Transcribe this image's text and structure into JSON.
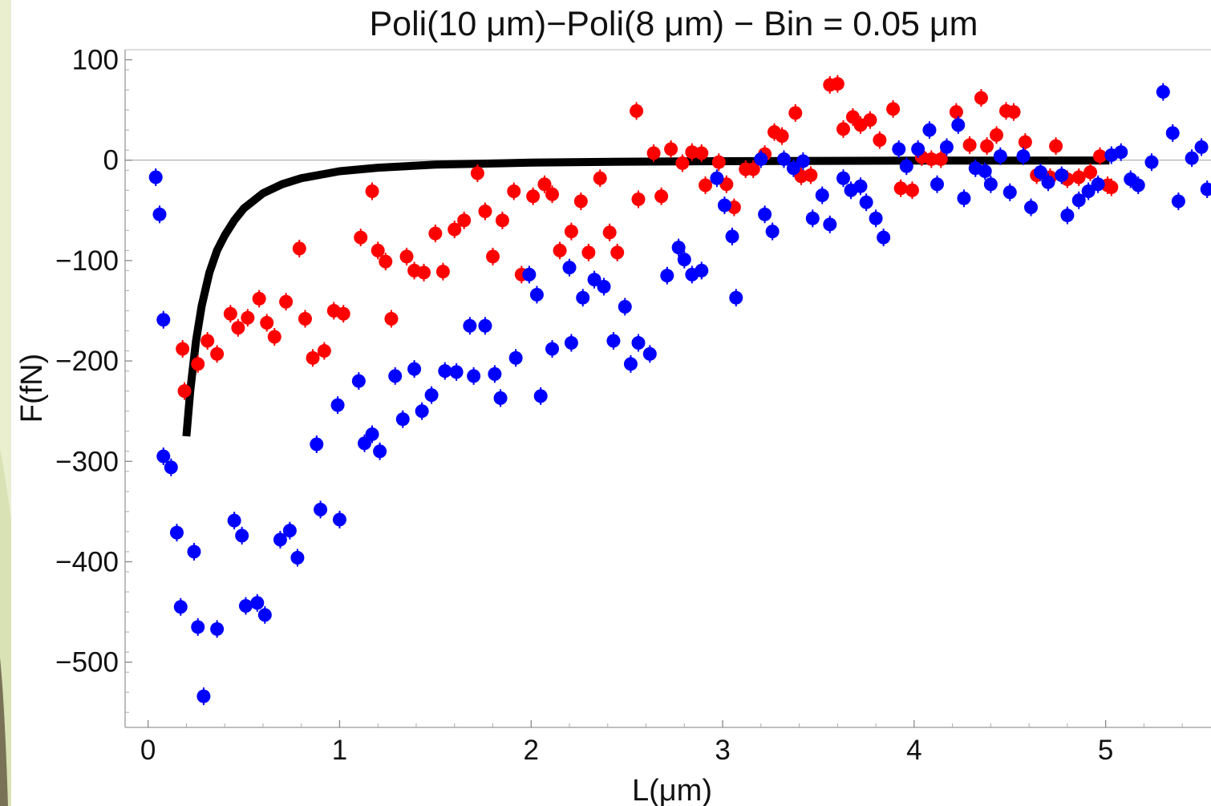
{
  "chart_data": {
    "type": "scatter",
    "title": "Poli(10 μm)−Poli(8 μm) − Bin = 0.05 μm",
    "xlabel": "L(μm)",
    "ylabel": "F(fN)",
    "xlim": [
      -0.12,
      5.55
    ],
    "ylim": [
      -565,
      110
    ],
    "xticks": [
      0,
      1,
      2,
      3,
      4,
      5
    ],
    "yticks": [
      100,
      0,
      -100,
      -200,
      -300,
      -400,
      -500
    ],
    "zero_line": true,
    "grid": false,
    "colors": {
      "red_series": "#ff0000",
      "blue_series": "#0000ff",
      "fit_curve": "#000000"
    },
    "series": [
      {
        "color": "#ff0000",
        "points": [
          [
            0.18,
            -188
          ],
          [
            0.19,
            -230
          ],
          [
            0.26,
            -203
          ],
          [
            0.31,
            -180
          ],
          [
            0.36,
            -193
          ],
          [
            0.43,
            -153
          ],
          [
            0.47,
            -167
          ],
          [
            0.52,
            -157
          ],
          [
            0.58,
            -138
          ],
          [
            0.62,
            -162
          ],
          [
            0.66,
            -176
          ],
          [
            0.72,
            -141
          ],
          [
            0.79,
            -88
          ],
          [
            0.82,
            -158
          ],
          [
            0.86,
            -197
          ],
          [
            0.92,
            -190
          ],
          [
            0.97,
            -150
          ],
          [
            1.02,
            -153
          ],
          [
            1.11,
            -77
          ],
          [
            1.17,
            -31
          ],
          [
            1.2,
            -90
          ],
          [
            1.24,
            -101
          ],
          [
            1.27,
            -158
          ],
          [
            1.35,
            -96
          ],
          [
            1.39,
            -110
          ],
          [
            1.44,
            -112
          ],
          [
            1.5,
            -73
          ],
          [
            1.54,
            -111
          ],
          [
            1.6,
            -69
          ],
          [
            1.65,
            -60
          ],
          [
            1.72,
            -13
          ],
          [
            1.76,
            -51
          ],
          [
            1.8,
            -96
          ],
          [
            1.85,
            -60
          ],
          [
            1.91,
            -31
          ],
          [
            1.95,
            -114
          ],
          [
            2.01,
            -36
          ],
          [
            2.07,
            -24
          ],
          [
            2.11,
            -34
          ],
          [
            2.15,
            -90
          ],
          [
            2.21,
            -71
          ],
          [
            2.26,
            -41
          ],
          [
            2.3,
            -92
          ],
          [
            2.36,
            -18
          ],
          [
            2.41,
            -72
          ],
          [
            2.45,
            -92
          ],
          [
            2.55,
            49
          ],
          [
            2.56,
            -39
          ],
          [
            2.64,
            7
          ],
          [
            2.68,
            -36
          ],
          [
            2.73,
            11
          ],
          [
            2.79,
            -3
          ],
          [
            2.84,
            8
          ],
          [
            2.89,
            7
          ],
          [
            2.91,
            -25
          ],
          [
            2.98,
            -2
          ],
          [
            3.02,
            -24
          ],
          [
            3.06,
            -47
          ],
          [
            3.12,
            -9
          ],
          [
            3.16,
            -9
          ],
          [
            3.22,
            6
          ],
          [
            3.27,
            28
          ],
          [
            3.31,
            24
          ],
          [
            3.38,
            47
          ],
          [
            3.41,
            -16
          ],
          [
            3.46,
            -15
          ],
          [
            3.56,
            75
          ],
          [
            3.6,
            76
          ],
          [
            3.63,
            31
          ],
          [
            3.68,
            43
          ],
          [
            3.72,
            35
          ],
          [
            3.77,
            40
          ],
          [
            3.82,
            20
          ],
          [
            3.89,
            51
          ],
          [
            3.93,
            -28
          ],
          [
            3.99,
            -30
          ],
          [
            4.04,
            3
          ],
          [
            4.09,
            1
          ],
          [
            4.14,
            1
          ],
          [
            4.22,
            48
          ],
          [
            4.29,
            15
          ],
          [
            4.35,
            62
          ],
          [
            4.38,
            14
          ],
          [
            4.43,
            25
          ],
          [
            4.48,
            49
          ],
          [
            4.52,
            48
          ],
          [
            4.58,
            18
          ],
          [
            4.64,
            -15
          ],
          [
            4.71,
            -17
          ],
          [
            4.74,
            14
          ],
          [
            4.8,
            -19
          ],
          [
            4.86,
            -17
          ],
          [
            4.92,
            -12
          ],
          [
            4.97,
            4
          ],
          [
            5.01,
            -25
          ],
          [
            5.03,
            -27
          ]
        ]
      },
      {
        "color": "#0000ff",
        "points": [
          [
            0.04,
            -17
          ],
          [
            0.06,
            -54
          ],
          [
            0.08,
            -159
          ],
          [
            0.08,
            -295
          ],
          [
            0.12,
            -306
          ],
          [
            0.15,
            -371
          ],
          [
            0.17,
            -445
          ],
          [
            0.24,
            -390
          ],
          [
            0.26,
            -465
          ],
          [
            0.29,
            -534
          ],
          [
            0.36,
            -467
          ],
          [
            0.45,
            -359
          ],
          [
            0.49,
            -374
          ],
          [
            0.51,
            -444
          ],
          [
            0.57,
            -441
          ],
          [
            0.61,
            -453
          ],
          [
            0.69,
            -378
          ],
          [
            0.74,
            -369
          ],
          [
            0.78,
            -396
          ],
          [
            0.88,
            -283
          ],
          [
            0.9,
            -348
          ],
          [
            0.99,
            -244
          ],
          [
            1.0,
            -358
          ],
          [
            1.1,
            -220
          ],
          [
            1.13,
            -282
          ],
          [
            1.17,
            -273
          ],
          [
            1.21,
            -290
          ],
          [
            1.29,
            -215
          ],
          [
            1.33,
            -258
          ],
          [
            1.39,
            -208
          ],
          [
            1.43,
            -250
          ],
          [
            1.48,
            -234
          ],
          [
            1.55,
            -210
          ],
          [
            1.61,
            -211
          ],
          [
            1.68,
            -165
          ],
          [
            1.7,
            -215
          ],
          [
            1.76,
            -165
          ],
          [
            1.81,
            -213
          ],
          [
            1.84,
            -237
          ],
          [
            1.92,
            -197
          ],
          [
            1.99,
            -114
          ],
          [
            2.03,
            -134
          ],
          [
            2.05,
            -235
          ],
          [
            2.11,
            -188
          ],
          [
            2.2,
            -107
          ],
          [
            2.21,
            -182
          ],
          [
            2.27,
            -137
          ],
          [
            2.33,
            -119
          ],
          [
            2.38,
            -126
          ],
          [
            2.43,
            -180
          ],
          [
            2.49,
            -146
          ],
          [
            2.52,
            -203
          ],
          [
            2.56,
            -182
          ],
          [
            2.62,
            -193
          ],
          [
            2.71,
            -115
          ],
          [
            2.77,
            -87
          ],
          [
            2.8,
            -99
          ],
          [
            2.84,
            -114
          ],
          [
            2.89,
            -110
          ],
          [
            2.97,
            -18
          ],
          [
            3.01,
            -45
          ],
          [
            3.05,
            -76
          ],
          [
            3.07,
            -137
          ],
          [
            3.2,
            1
          ],
          [
            3.22,
            -54
          ],
          [
            3.26,
            -71
          ],
          [
            3.32,
            1
          ],
          [
            3.37,
            -8
          ],
          [
            3.42,
            -1
          ],
          [
            3.47,
            -58
          ],
          [
            3.52,
            -35
          ],
          [
            3.56,
            -64
          ],
          [
            3.63,
            -18
          ],
          [
            3.67,
            -30
          ],
          [
            3.72,
            -26
          ],
          [
            3.75,
            -42
          ],
          [
            3.8,
            -58
          ],
          [
            3.84,
            -77
          ],
          [
            3.92,
            11
          ],
          [
            3.96,
            -6
          ],
          [
            4.02,
            11
          ],
          [
            4.08,
            30
          ],
          [
            4.12,
            -24
          ],
          [
            4.17,
            13
          ],
          [
            4.23,
            35
          ],
          [
            4.26,
            -38
          ],
          [
            4.32,
            -8
          ],
          [
            4.37,
            -11
          ],
          [
            4.4,
            -24
          ],
          [
            4.45,
            4
          ],
          [
            4.5,
            -32
          ],
          [
            4.57,
            4
          ],
          [
            4.61,
            -47
          ],
          [
            4.66,
            -12
          ],
          [
            4.7,
            -22
          ],
          [
            4.77,
            -15
          ],
          [
            4.8,
            -55
          ],
          [
            4.86,
            -40
          ],
          [
            4.91,
            -31
          ],
          [
            4.96,
            -24
          ],
          [
            5.03,
            5
          ],
          [
            5.08,
            8
          ],
          [
            5.13,
            -19
          ],
          [
            5.17,
            -25
          ],
          [
            5.24,
            -2
          ],
          [
            5.3,
            68
          ],
          [
            5.35,
            27
          ],
          [
            5.38,
            -41
          ],
          [
            5.45,
            2
          ],
          [
            5.5,
            13
          ],
          [
            5.53,
            -29
          ]
        ]
      },
      {
        "color": "#000000",
        "kind": "line",
        "points": [
          [
            0.2,
            -275
          ],
          [
            0.22,
            -230
          ],
          [
            0.25,
            -180
          ],
          [
            0.28,
            -145
          ],
          [
            0.32,
            -112
          ],
          [
            0.36,
            -90
          ],
          [
            0.4,
            -75
          ],
          [
            0.45,
            -60
          ],
          [
            0.5,
            -48
          ],
          [
            0.6,
            -33
          ],
          [
            0.7,
            -24
          ],
          [
            0.8,
            -18
          ],
          [
            1.0,
            -11
          ],
          [
            1.2,
            -7.5
          ],
          [
            1.5,
            -4.5
          ],
          [
            2.0,
            -2.5
          ],
          [
            2.5,
            -1.5
          ],
          [
            3.0,
            -1
          ],
          [
            3.5,
            -0.7
          ],
          [
            4.0,
            -0.5
          ],
          [
            4.5,
            -0.4
          ],
          [
            5.02,
            -0.3
          ]
        ]
      }
    ]
  }
}
